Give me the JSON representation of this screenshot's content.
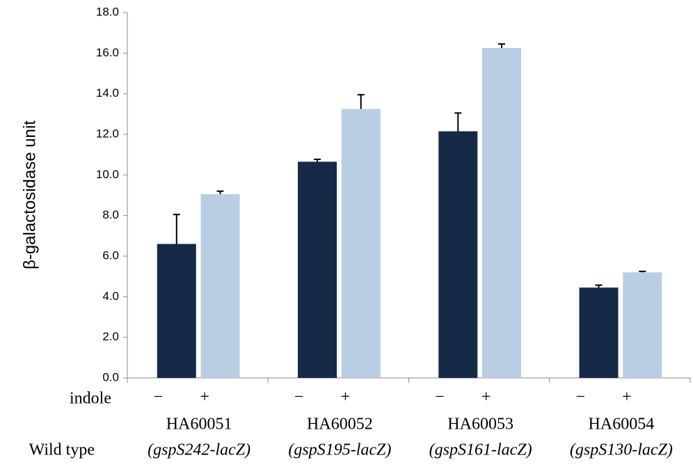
{
  "chart_data": {
    "type": "bar",
    "ylabel": "β-galactosidase unit",
    "factor_label": "indole",
    "group_label": "Wild type",
    "categories": [
      "HA60051",
      "HA60052",
      "HA60053",
      "HA60054"
    ],
    "strain_labels": [
      "(gspS242-lacZ)",
      "(gspS195-lacZ)",
      "(gspS161-lacZ)",
      "(gspS130-lacZ)"
    ],
    "series": [
      {
        "name": "−",
        "color": "#152a47",
        "values": [
          6.6,
          10.65,
          12.15,
          4.45
        ],
        "errors": [
          1.45,
          0.12,
          0.9,
          0.12
        ]
      },
      {
        "name": "+",
        "color": "#b9cde5",
        "values": [
          9.05,
          13.25,
          16.25,
          5.2
        ],
        "errors": [
          0.15,
          0.7,
          0.2,
          0.05
        ]
      }
    ],
    "ylim": [
      0,
      18
    ],
    "yticks": [
      {
        "value": 0,
        "label": "0.0"
      },
      {
        "value": 2,
        "label": "2.0"
      },
      {
        "value": 4,
        "label": "4.0"
      },
      {
        "value": 6,
        "label": "6.0"
      },
      {
        "value": 8,
        "label": "8.0"
      },
      {
        "value": 10,
        "label": "10.0"
      },
      {
        "value": 12,
        "label": "12.0"
      },
      {
        "value": 14,
        "label": "14.0"
      },
      {
        "value": 16,
        "label": "16.0"
      },
      {
        "value": 18,
        "label": "18.0"
      }
    ],
    "grid": false
  }
}
